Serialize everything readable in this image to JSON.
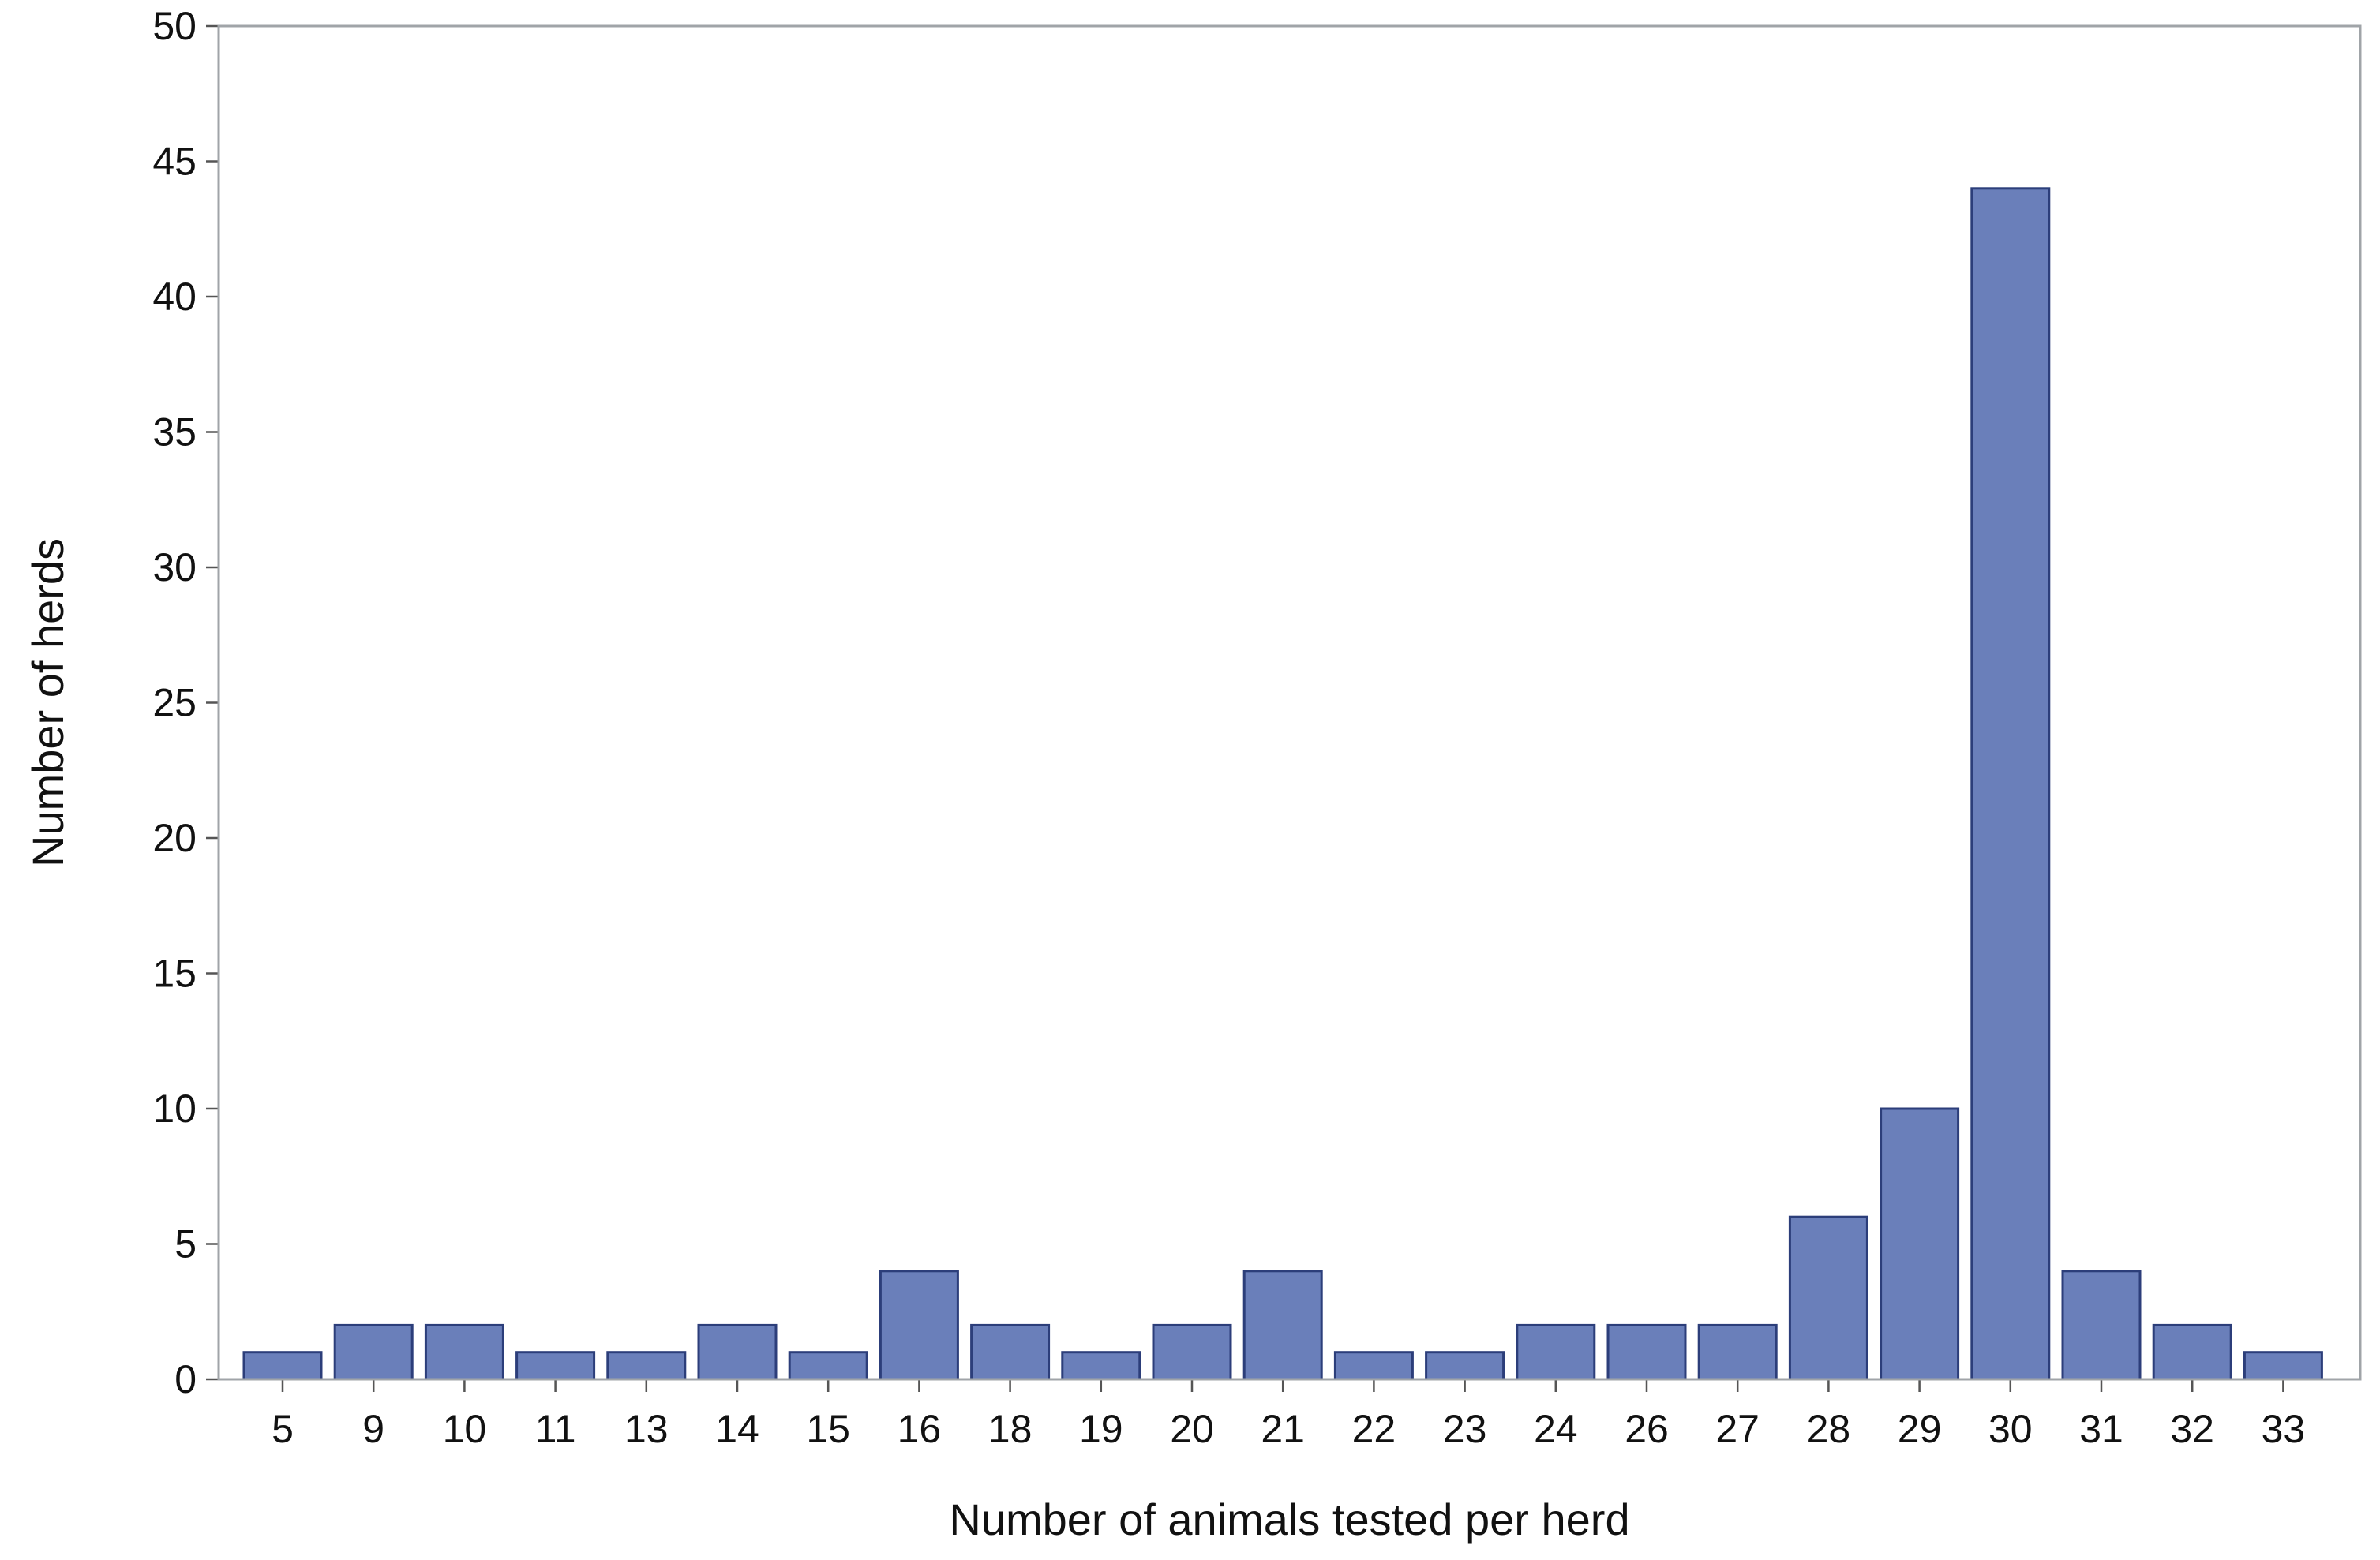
{
  "chart_data": {
    "type": "bar",
    "title": "",
    "xlabel": "Number of animals tested per herd",
    "ylabel": "Number of herds",
    "categories": [
      "5",
      "9",
      "10",
      "11",
      "13",
      "14",
      "15",
      "16",
      "18",
      "19",
      "20",
      "21",
      "22",
      "23",
      "24",
      "26",
      "27",
      "28",
      "29",
      "30",
      "31",
      "32",
      "33"
    ],
    "values": [
      1,
      2,
      2,
      1,
      1,
      2,
      1,
      4,
      2,
      1,
      2,
      4,
      1,
      1,
      2,
      2,
      2,
      6,
      10,
      44,
      4,
      2,
      1
    ],
    "ylim": [
      0,
      50
    ],
    "yticks": [
      0,
      5,
      10,
      15,
      20,
      25,
      30,
      35,
      40,
      45,
      50
    ],
    "grid": false,
    "legend": "none",
    "bar_color": "#6a7fba",
    "bar_edge_color": "#2c3e7a",
    "frame_color": "#a0a4a8"
  }
}
